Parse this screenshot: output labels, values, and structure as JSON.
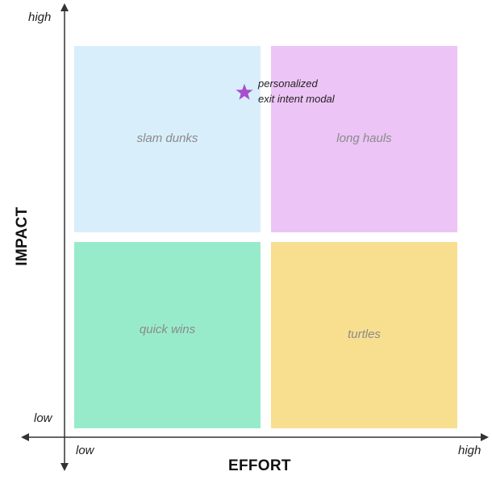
{
  "colors": {
    "slam_dunks": "#d9eefb",
    "long_hauls": "#ecc4f6",
    "quick_wins": "#98ebca",
    "turtles": "#f8df90",
    "star": "#a84fcf",
    "axis": "#333333"
  },
  "axes": {
    "y_title": "IMPACT",
    "x_title": "EFFORT",
    "y_high": "high",
    "y_low": "low",
    "x_low": "low",
    "x_high": "high"
  },
  "quadrants": {
    "top_left": "slam dunks",
    "top_right": "long hauls",
    "bottom_left": "quick wins",
    "bottom_right": "turtles"
  },
  "item": {
    "icon": "star-icon",
    "line1": "personalized",
    "line2": "exit intent modal"
  }
}
